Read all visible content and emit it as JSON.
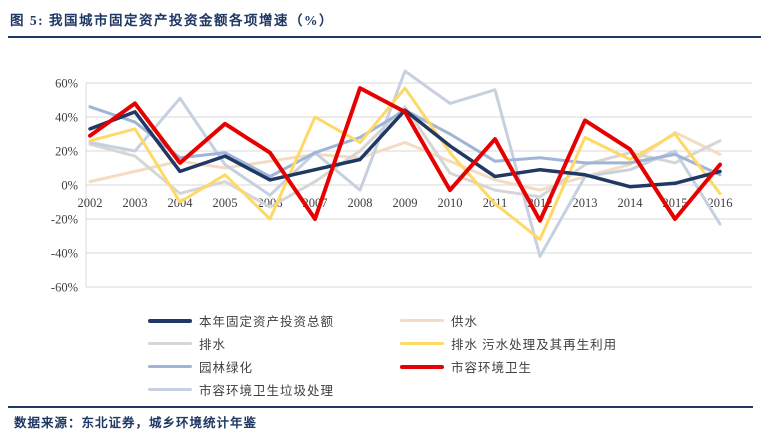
{
  "figure": {
    "title": "图 5: 我国城市固定资产投资金额各项增速（%）",
    "source": "数据来源：东北证券，城乡环境统计年鉴"
  },
  "colors": {
    "accent_navy": "#1f3864",
    "grid": "#d9d9d9",
    "tick_text": "#404040"
  },
  "chart_data": {
    "type": "line",
    "title": "我国城市固定资产投资金额各项增速（%）",
    "xlabel": "",
    "ylabel": "",
    "ylim": [
      -60,
      60
    ],
    "y_tick_step": 20,
    "y_ticks": [
      "60%",
      "40%",
      "20%",
      "0%",
      "-20%",
      "-40%",
      "-60%"
    ],
    "grid": true,
    "legend_position": "bottom",
    "categories": [
      "2002",
      "2003",
      "2004",
      "2005",
      "2006",
      "2007",
      "2008",
      "2009",
      "2010",
      "2011",
      "2012",
      "2013",
      "2014",
      "2015",
      "2016"
    ],
    "draw_order": [
      1,
      2,
      6,
      4,
      3,
      0,
      5
    ],
    "series": [
      {
        "id": "total-investment",
        "name": "本年固定资产投资总额",
        "color": "#1f3864",
        "width": 3.5,
        "values": [
          33,
          43,
          8,
          17,
          3,
          9,
          15,
          44,
          23,
          5,
          9,
          6,
          -1,
          1,
          8
        ]
      },
      {
        "id": "water-supply",
        "name": "供水",
        "color": "#f4dcc2",
        "width": 3,
        "values": [
          2,
          8,
          14,
          10,
          14,
          18,
          16,
          25,
          14,
          3,
          -3,
          5,
          12,
          31,
          18
        ]
      },
      {
        "id": "drainage",
        "name": "排水",
        "color": "#d6d6d6",
        "width": 3,
        "values": [
          24,
          17,
          -5,
          2,
          -13,
          2,
          20,
          46,
          7,
          -3,
          -7,
          12,
          19,
          13,
          26
        ]
      },
      {
        "id": "sewage-treatment",
        "name": "排水 污水处理及其再生利用",
        "color": "#ffd966",
        "width": 3,
        "values": [
          26,
          33,
          -10,
          6,
          -20,
          40,
          25,
          57,
          19,
          -11,
          -32,
          28,
          15,
          30,
          -5
        ]
      },
      {
        "id": "landscaping",
        "name": "园林绿化",
        "color": "#9fb5d8",
        "width": 3,
        "values": [
          46,
          37,
          16,
          19,
          5,
          19,
          28,
          44,
          30,
          14,
          16,
          13,
          13,
          18,
          6
        ]
      },
      {
        "id": "sanitation",
        "name": "市容环境卫生",
        "color": "#e60000",
        "width": 4,
        "values": [
          29,
          48,
          13,
          36,
          19,
          -20,
          57,
          43,
          -3,
          27,
          -21,
          38,
          21,
          -20,
          12
        ]
      },
      {
        "id": "garbage-disposal",
        "name": "市容环境卫生垃圾处理",
        "color": "#c7d0e0",
        "width": 3,
        "values": [
          25,
          20,
          51,
          12,
          -6,
          19,
          -3,
          67,
          48,
          56,
          -42,
          5,
          9,
          20,
          -23
        ]
      }
    ]
  }
}
